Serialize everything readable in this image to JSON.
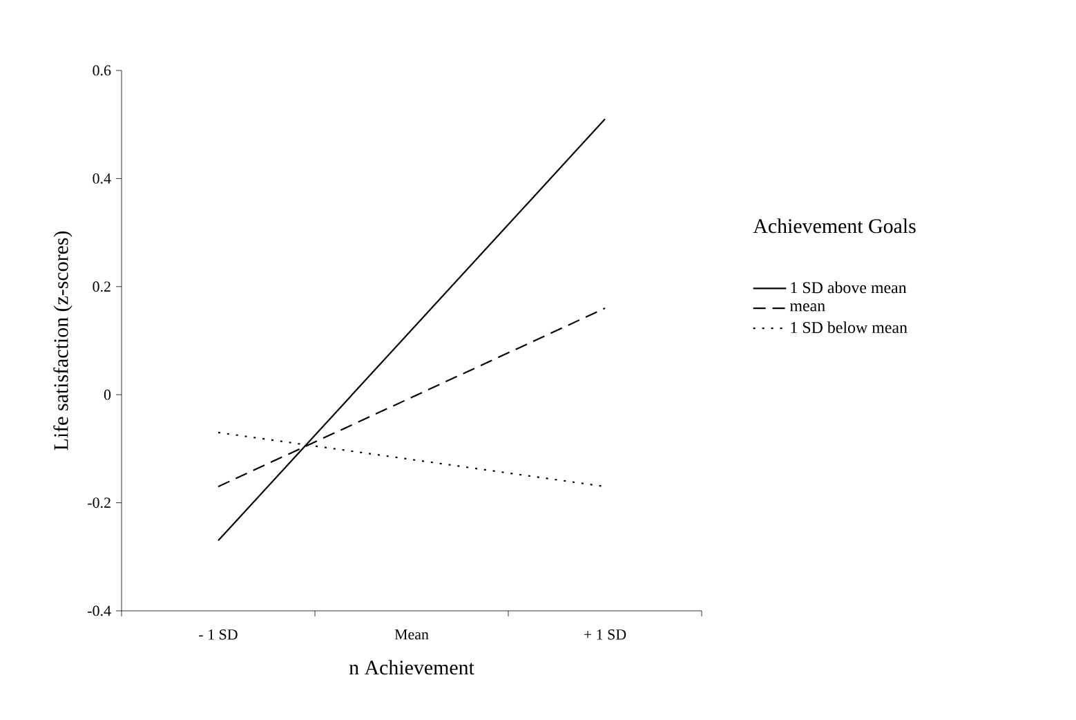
{
  "chart_data": {
    "type": "line",
    "xlabel": "n Achievement",
    "ylabel": "Life satisfaction (z-scores)",
    "legend_title": "Achievement Goals",
    "categories": [
      "- 1 SD",
      "Mean",
      "+ 1 SD"
    ],
    "series": [
      {
        "name": "1 SD above mean",
        "color": "#000000",
        "line_style": "solid",
        "values": [
          -0.27,
          null,
          0.51
        ]
      },
      {
        "name": "mean",
        "color": "#000000",
        "line_style": "dashed",
        "values": [
          -0.17,
          null,
          0.16
        ]
      },
      {
        "name": "1 SD below mean",
        "color": "#000000",
        "line_style": "dotted",
        "values": [
          -0.07,
          null,
          -0.17
        ]
      }
    ],
    "ylim": [
      -0.4,
      0.6
    ],
    "yticks": [
      -0.4,
      -0.2,
      0,
      0.2,
      0.4,
      0.6
    ],
    "grid": false,
    "legend": "right",
    "marker": "none"
  }
}
